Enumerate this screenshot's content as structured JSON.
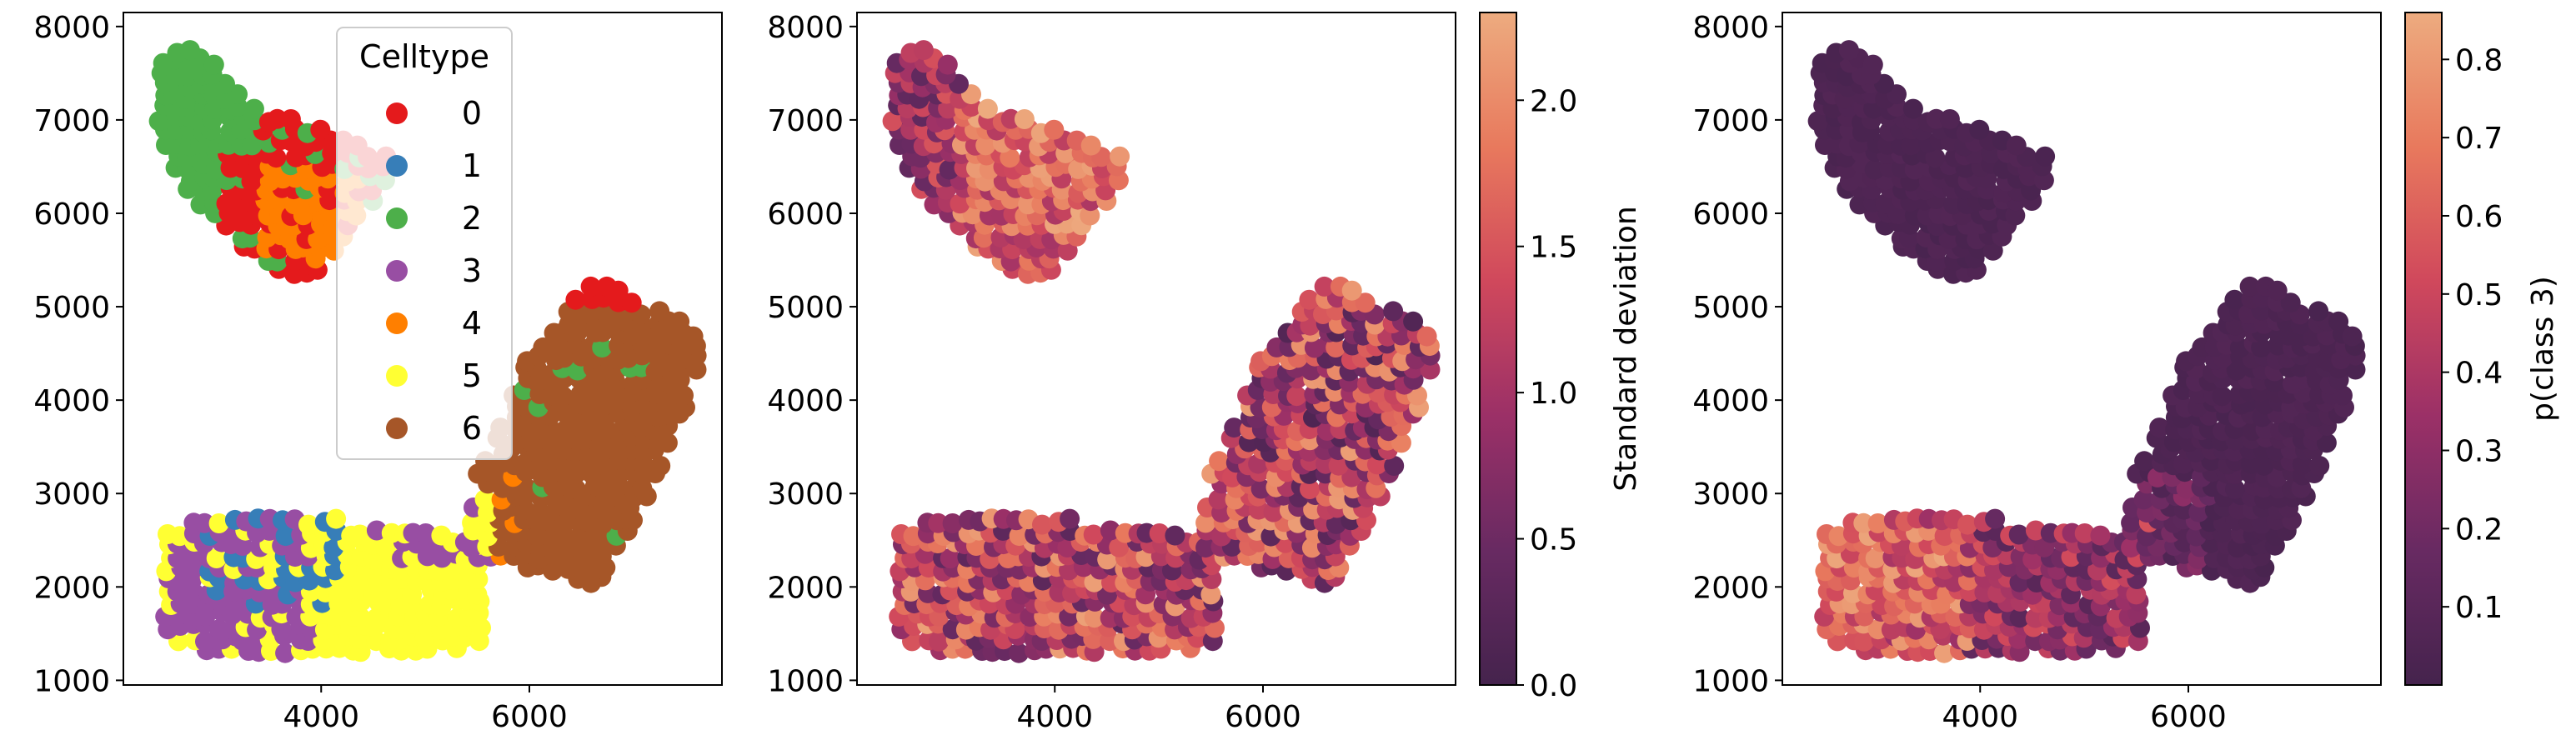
{
  "chart_data": [
    {
      "type": "scatter",
      "title": "",
      "xlabel": "",
      "ylabel": "",
      "xlim": [
        2100,
        7850
      ],
      "ylim": [
        950,
        8150
      ],
      "xticks": [
        "4000",
        "6000"
      ],
      "yticks": [
        "1000",
        "2000",
        "3000",
        "4000",
        "5000",
        "6000",
        "7000",
        "8000"
      ],
      "legend": {
        "title": "Celltype",
        "placement": "upper center",
        "entries": [
          {
            "label": "0",
            "color": "#e41a1c"
          },
          {
            "label": "1",
            "color": "#377eb8"
          },
          {
            "label": "2",
            "color": "#4daf4a"
          },
          {
            "label": "3",
            "color": "#984ea3"
          },
          {
            "label": "4",
            "color": "#ff7f00"
          },
          {
            "label": "5",
            "color": "#ffff33"
          },
          {
            "label": "6",
            "color": "#a65628"
          }
        ]
      },
      "series_regions": [
        {
          "name": "0",
          "region": "top-right of upper tissue",
          "x": [
            3300,
            4700
          ],
          "y": [
            5400,
            7300
          ]
        },
        {
          "name": "2",
          "region": "top-left of upper tissue",
          "x": [
            2400,
            3800
          ],
          "y": [
            5300,
            7800
          ]
        },
        {
          "name": "4",
          "region": "center-right of upper tissue",
          "x": [
            3500,
            4700
          ],
          "y": [
            5400,
            6600
          ]
        },
        {
          "name": "3",
          "region": "lower-left tissue",
          "x": [
            2500,
            4500
          ],
          "y": [
            1300,
            2800
          ]
        },
        {
          "name": "1",
          "region": "lower-left tissue",
          "x": [
            2900,
            3900
          ],
          "y": [
            1700,
            2800
          ]
        },
        {
          "name": "5",
          "region": "lower-center tissue",
          "x": [
            2600,
            5500
          ],
          "y": [
            1300,
            2800
          ]
        },
        {
          "name": "6",
          "region": "right tissue",
          "x": [
            5400,
            7600
          ],
          "y": [
            2100,
            5300
          ]
        }
      ]
    },
    {
      "type": "scatter",
      "title": "",
      "xlabel": "",
      "ylabel": "",
      "xlim": [
        2100,
        7850
      ],
      "ylim": [
        950,
        8150
      ],
      "xticks": [
        "4000",
        "6000"
      ],
      "yticks": [
        "1000",
        "2000",
        "3000",
        "4000",
        "5000",
        "6000",
        "7000",
        "8000"
      ],
      "colorbar": {
        "label": "Standard deviation",
        "range": [
          0.0,
          2.3
        ],
        "ticks": [
          "0.0",
          "0.5",
          "1.0",
          "1.5",
          "2.0"
        ],
        "colormap": "flare_r"
      }
    },
    {
      "type": "scatter",
      "title": "",
      "xlabel": "",
      "ylabel": "",
      "xlim": [
        2100,
        7850
      ],
      "ylim": [
        950,
        8150
      ],
      "xticks": [
        "4000",
        "6000"
      ],
      "yticks": [
        "1000",
        "2000",
        "3000",
        "4000",
        "5000",
        "6000",
        "7000",
        "8000"
      ],
      "colorbar": {
        "label": "p(class 3)",
        "range": [
          0.0,
          0.86
        ],
        "ticks": [
          "0.1",
          "0.2",
          "0.3",
          "0.4",
          "0.5",
          "0.6",
          "0.7",
          "0.8"
        ],
        "colormap": "flare_r"
      }
    }
  ]
}
